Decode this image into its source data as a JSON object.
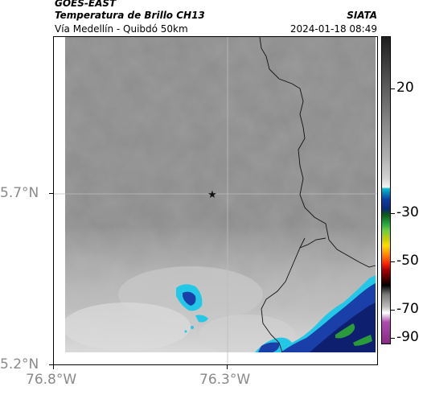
{
  "header": {
    "satellite": "GOES-EAST",
    "product": "Temperatura de Brillo CH13",
    "organization": "SIATA",
    "region": "Vía Medellín - Quibdó 50km",
    "timestamp": "2024-01-18 08:49"
  },
  "map": {
    "lat_ticks": [
      "5.7°N",
      "5.2°N"
    ],
    "lon_ticks": [
      "76.8°W",
      "76.3°W"
    ],
    "marker": "star-icon",
    "colors": {
      "cloud_gray": "#8c8c8c",
      "no_data": "#ffffff",
      "cold_cyan": "#22c8e6",
      "cold_blue": "#1a3fa8",
      "cold_navy": "#0d1f6e",
      "cold_green": "#2a9a3a"
    }
  },
  "colorbar": {
    "tick_labels": [
      "20",
      "-30",
      "-50",
      "-70",
      "-90"
    ]
  }
}
